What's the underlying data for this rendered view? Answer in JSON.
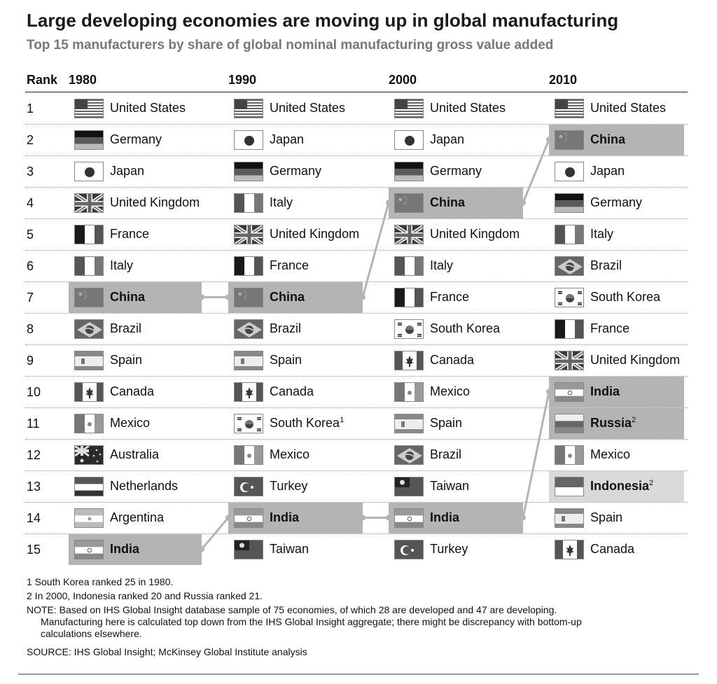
{
  "title": "Large developing economies are moving up in global manufacturing",
  "subtitle": "Top 15 manufacturers by share of global nominal manufacturing gross value added",
  "chart_data": {
    "type": "table",
    "columns": [
      "Rank",
      "1980",
      "1990",
      "2000",
      "2010"
    ],
    "ranks": [
      "1",
      "2",
      "3",
      "4",
      "5",
      "6",
      "7",
      "8",
      "9",
      "10",
      "11",
      "12",
      "13",
      "14",
      "15"
    ],
    "years": [
      {
        "year": "1980",
        "rows": [
          {
            "country": "United States",
            "flag": "us-flag-icon"
          },
          {
            "country": "Germany",
            "flag": "germany-flag-icon"
          },
          {
            "country": "Japan",
            "flag": "japan-flag-icon"
          },
          {
            "country": "United Kingdom",
            "flag": "uk-flag-icon"
          },
          {
            "country": "France",
            "flag": "france-flag-icon"
          },
          {
            "country": "Italy",
            "flag": "italy-flag-icon"
          },
          {
            "country": "China",
            "flag": "china-flag-icon",
            "highlight": "dark"
          },
          {
            "country": "Brazil",
            "flag": "brazil-flag-icon"
          },
          {
            "country": "Spain",
            "flag": "spain-flag-icon"
          },
          {
            "country": "Canada",
            "flag": "canada-flag-icon"
          },
          {
            "country": "Mexico",
            "flag": "mexico-flag-icon"
          },
          {
            "country": "Australia",
            "flag": "australia-flag-icon"
          },
          {
            "country": "Netherlands",
            "flag": "netherlands-flag-icon"
          },
          {
            "country": "Argentina",
            "flag": "argentina-flag-icon"
          },
          {
            "country": "India",
            "flag": "india-flag-icon",
            "highlight": "dark"
          }
        ]
      },
      {
        "year": "1990",
        "rows": [
          {
            "country": "United States",
            "flag": "us-flag-icon"
          },
          {
            "country": "Japan",
            "flag": "japan-flag-icon"
          },
          {
            "country": "Germany",
            "flag": "germany-flag-icon"
          },
          {
            "country": "Italy",
            "flag": "italy-flag-icon"
          },
          {
            "country": "United Kingdom",
            "flag": "uk-flag-icon"
          },
          {
            "country": "France",
            "flag": "france-flag-icon"
          },
          {
            "country": "China",
            "flag": "china-flag-icon",
            "highlight": "dark"
          },
          {
            "country": "Brazil",
            "flag": "brazil-flag-icon"
          },
          {
            "country": "Spain",
            "flag": "spain-flag-icon"
          },
          {
            "country": "Canada",
            "flag": "canada-flag-icon"
          },
          {
            "country": "South Korea",
            "flag": "south-korea-flag-icon",
            "note": "1"
          },
          {
            "country": "Mexico",
            "flag": "mexico-flag-icon"
          },
          {
            "country": "Turkey",
            "flag": "turkey-flag-icon"
          },
          {
            "country": "India",
            "flag": "india-flag-icon",
            "highlight": "dark"
          },
          {
            "country": "Taiwan",
            "flag": "taiwan-flag-icon"
          }
        ]
      },
      {
        "year": "2000",
        "rows": [
          {
            "country": "United States",
            "flag": "us-flag-icon"
          },
          {
            "country": "Japan",
            "flag": "japan-flag-icon"
          },
          {
            "country": "Germany",
            "flag": "germany-flag-icon"
          },
          {
            "country": "China",
            "flag": "china-flag-icon",
            "highlight": "dark"
          },
          {
            "country": "United Kingdom",
            "flag": "uk-flag-icon"
          },
          {
            "country": "Italy",
            "flag": "italy-flag-icon"
          },
          {
            "country": "France",
            "flag": "france-flag-icon"
          },
          {
            "country": "South Korea",
            "flag": "south-korea-flag-icon"
          },
          {
            "country": "Canada",
            "flag": "canada-flag-icon"
          },
          {
            "country": "Mexico",
            "flag": "mexico-flag-icon"
          },
          {
            "country": "Spain",
            "flag": "spain-flag-icon"
          },
          {
            "country": "Brazil",
            "flag": "brazil-flag-icon"
          },
          {
            "country": "Taiwan",
            "flag": "taiwan-flag-icon"
          },
          {
            "country": "India",
            "flag": "india-flag-icon",
            "highlight": "dark"
          },
          {
            "country": "Turkey",
            "flag": "turkey-flag-icon"
          }
        ]
      },
      {
        "year": "2010",
        "rows": [
          {
            "country": "United States",
            "flag": "us-flag-icon"
          },
          {
            "country": "China",
            "flag": "china-flag-icon",
            "highlight": "dark"
          },
          {
            "country": "Japan",
            "flag": "japan-flag-icon"
          },
          {
            "country": "Germany",
            "flag": "germany-flag-icon"
          },
          {
            "country": "Italy",
            "flag": "italy-flag-icon"
          },
          {
            "country": "Brazil",
            "flag": "brazil-flag-icon"
          },
          {
            "country": "South Korea",
            "flag": "south-korea-flag-icon"
          },
          {
            "country": "France",
            "flag": "france-flag-icon"
          },
          {
            "country": "United Kingdom",
            "flag": "uk-flag-icon"
          },
          {
            "country": "India",
            "flag": "india-flag-icon",
            "highlight": "dark"
          },
          {
            "country": "Russia",
            "flag": "russia-flag-icon",
            "highlight": "dark",
            "note": "2"
          },
          {
            "country": "Mexico",
            "flag": "mexico-flag-icon"
          },
          {
            "country": "Indonesia",
            "flag": "indonesia-flag-icon",
            "highlight": "light",
            "note": "2"
          },
          {
            "country": "Spain",
            "flag": "spain-flag-icon"
          },
          {
            "country": "Canada",
            "flag": "canada-flag-icon"
          }
        ]
      }
    ],
    "connectors": [
      {
        "country": "China",
        "ranks": [
          7,
          7,
          4,
          2
        ]
      },
      {
        "country": "India",
        "ranks": [
          15,
          14,
          14,
          10
        ]
      }
    ]
  },
  "footnotes": [
    "1  South Korea ranked 25 in 1980.",
    "2  In 2000, Indonesia ranked 20 and Russia ranked 21."
  ],
  "note_lines": [
    "NOTE: Based on IHS Global Insight database sample of 75 economies, of which 28 are developed and 47 are developing.",
    "Manufacturing here is calculated top down from the IHS Global Insight aggregate; there might be discrepancy with bottom-up",
    "calculations elsewhere."
  ],
  "source": "SOURCE: IHS Global Insight; McKinsey Global Institute analysis"
}
